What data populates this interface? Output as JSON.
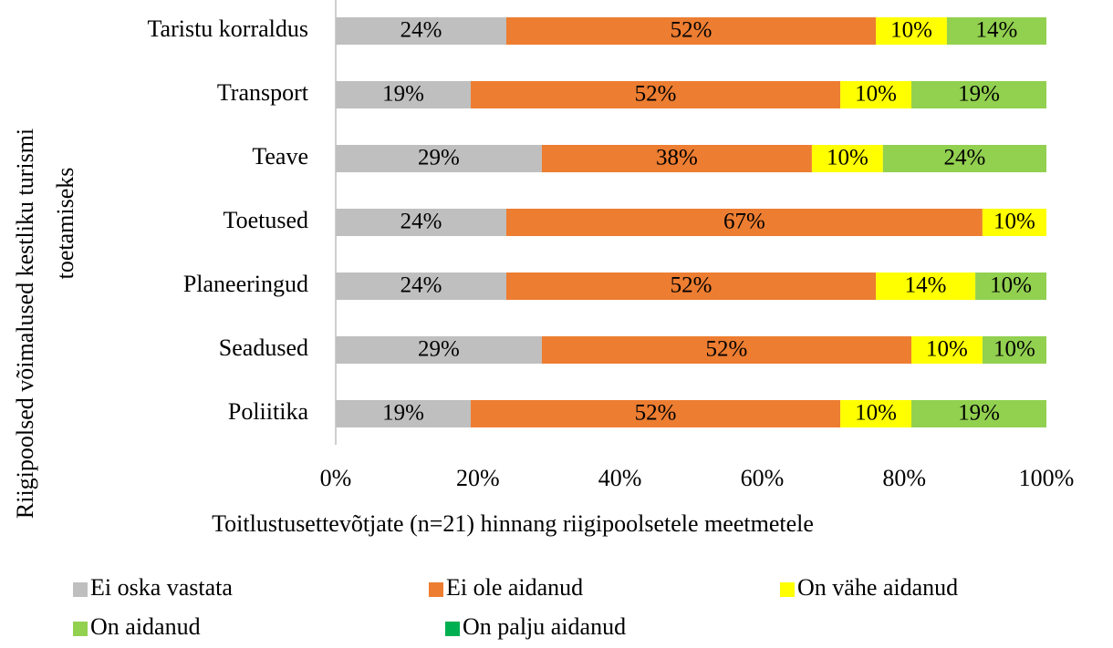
{
  "chart_data": {
    "type": "stacked_bar_horizontal",
    "ylabel": [
      "Riigipoolsed võimalused kestliku turismi",
      "toetamiseks"
    ],
    "xlabel": "Toitlustusettevõtjate (n=21) hinnang riigipoolsetele meetmetele",
    "categories": [
      "Taristu korraldus",
      "Transport",
      "Teave",
      "Toetused",
      "Planeeringud",
      "Seadused",
      "Poliitika"
    ],
    "series": [
      {
        "name": "Ei oska vastata",
        "color": "#bfbfbf",
        "values": [
          24,
          19,
          29,
          24,
          24,
          29,
          19
        ],
        "value_labels": [
          "24%",
          "19%",
          "29%",
          "24%",
          "24%",
          "29%",
          "19%"
        ]
      },
      {
        "name": "Ei ole aidanud",
        "color": "#ed7d31",
        "values": [
          52,
          52,
          38,
          67,
          52,
          52,
          52
        ],
        "value_labels": [
          "52%",
          "52%",
          "38%",
          "67%",
          "52%",
          "52%",
          "52%"
        ]
      },
      {
        "name": "On vähe aidanud",
        "color": "#ffff00",
        "values": [
          10,
          10,
          10,
          10,
          14,
          10,
          10
        ],
        "value_labels": [
          "10%",
          "10%",
          "10%",
          "10%",
          "14%",
          "10%",
          "10%"
        ]
      },
      {
        "name": "On aidanud",
        "color": "#92d050",
        "values": [
          14,
          19,
          24,
          null,
          10,
          10,
          19
        ],
        "value_labels": [
          "14%",
          "19%",
          "24%",
          null,
          "10%",
          "10%",
          "19%"
        ]
      },
      {
        "name": "On palju aidanud",
        "color": "#00b050",
        "values": [
          null,
          null,
          null,
          null,
          null,
          null,
          null
        ],
        "value_labels": [
          null,
          null,
          null,
          null,
          null,
          null,
          null
        ]
      }
    ],
    "xlim": [
      0,
      100
    ],
    "xticks": [
      {
        "value": 0,
        "label": "0%"
      },
      {
        "value": 20,
        "label": "20%"
      },
      {
        "value": 40,
        "label": "40%"
      },
      {
        "value": 60,
        "label": "60%"
      },
      {
        "value": 80,
        "label": "80%"
      },
      {
        "value": 100,
        "label": "100%"
      }
    ],
    "legend": "bottom"
  }
}
